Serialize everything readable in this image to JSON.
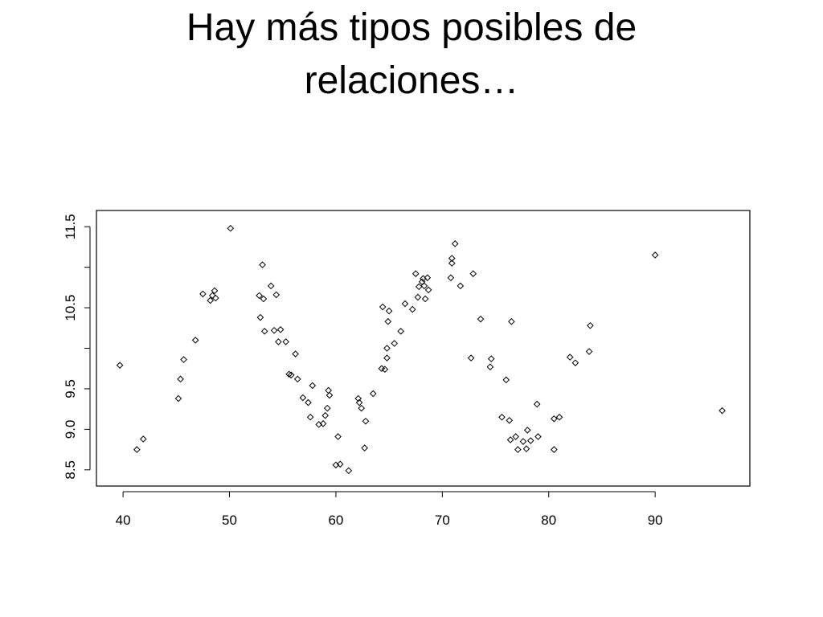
{
  "slide": {
    "title_line1": "Hay más tipos posibles de",
    "title_line2": "relaciones…"
  },
  "chart_data": {
    "type": "scatter",
    "title": "",
    "xlabel": "",
    "ylabel": "",
    "xlim": [
      37.5,
      98.9
    ],
    "ylim": [
      8.3,
      11.7
    ],
    "xticks": [
      40,
      50,
      60,
      70,
      80,
      90
    ],
    "xtick_labels": [
      "40",
      "50",
      "60",
      "70",
      "80",
      "90"
    ],
    "yticks": [
      8.5,
      9.0,
      9.5,
      10.0,
      10.5,
      11.0,
      11.5
    ],
    "ytick_labels": [
      "8.5",
      "9.0",
      "9.5",
      "",
      "10.5",
      "",
      "11.5"
    ],
    "marker": "open-diamond",
    "points": [
      [
        39.7,
        9.79
      ],
      [
        41.3,
        8.75
      ],
      [
        41.9,
        8.88
      ],
      [
        45.2,
        9.38
      ],
      [
        45.4,
        9.62
      ],
      [
        45.7,
        9.86
      ],
      [
        46.8,
        10.1
      ],
      [
        47.5,
        10.67
      ],
      [
        48.2,
        10.59
      ],
      [
        48.4,
        10.65
      ],
      [
        48.6,
        10.71
      ],
      [
        48.7,
        10.62
      ],
      [
        50.1,
        11.48
      ],
      [
        52.8,
        10.65
      ],
      [
        52.9,
        10.38
      ],
      [
        53.1,
        11.03
      ],
      [
        53.2,
        10.61
      ],
      [
        53.3,
        10.21
      ],
      [
        53.9,
        10.77
      ],
      [
        54.2,
        10.22
      ],
      [
        54.4,
        10.66
      ],
      [
        54.6,
        10.08
      ],
      [
        54.8,
        10.23
      ],
      [
        55.3,
        10.08
      ],
      [
        55.6,
        9.68
      ],
      [
        55.8,
        9.67
      ],
      [
        56.2,
        9.93
      ],
      [
        56.4,
        9.62
      ],
      [
        56.9,
        9.39
      ],
      [
        57.4,
        9.33
      ],
      [
        57.6,
        9.15
      ],
      [
        57.8,
        9.54
      ],
      [
        58.4,
        9.06
      ],
      [
        58.8,
        9.07
      ],
      [
        59.0,
        9.17
      ],
      [
        59.2,
        9.26
      ],
      [
        59.3,
        9.48
      ],
      [
        59.4,
        9.42
      ],
      [
        60.0,
        8.56
      ],
      [
        60.2,
        8.91
      ],
      [
        60.4,
        8.57
      ],
      [
        61.2,
        8.49
      ],
      [
        62.1,
        9.38
      ],
      [
        62.2,
        9.33
      ],
      [
        62.4,
        9.26
      ],
      [
        62.7,
        8.77
      ],
      [
        62.8,
        9.1
      ],
      [
        63.5,
        9.44
      ],
      [
        64.3,
        9.75
      ],
      [
        64.4,
        10.51
      ],
      [
        64.6,
        9.74
      ],
      [
        64.8,
        9.88
      ],
      [
        64.8,
        10.0
      ],
      [
        64.9,
        10.33
      ],
      [
        65.0,
        10.46
      ],
      [
        65.5,
        10.06
      ],
      [
        66.1,
        10.21
      ],
      [
        66.5,
        10.55
      ],
      [
        67.2,
        10.48
      ],
      [
        67.5,
        10.92
      ],
      [
        67.7,
        10.63
      ],
      [
        67.8,
        10.76
      ],
      [
        68.1,
        10.82
      ],
      [
        68.2,
        10.86
      ],
      [
        68.3,
        10.77
      ],
      [
        68.4,
        10.61
      ],
      [
        68.6,
        10.87
      ],
      [
        68.7,
        10.72
      ],
      [
        70.8,
        10.87
      ],
      [
        70.9,
        11.11
      ],
      [
        70.9,
        11.05
      ],
      [
        71.2,
        11.29
      ],
      [
        71.7,
        10.77
      ],
      [
        72.7,
        9.88
      ],
      [
        72.9,
        10.92
      ],
      [
        73.6,
        10.36
      ],
      [
        74.5,
        9.77
      ],
      [
        74.6,
        9.87
      ],
      [
        75.6,
        9.15
      ],
      [
        76.0,
        9.61
      ],
      [
        76.3,
        9.11
      ],
      [
        76.4,
        8.87
      ],
      [
        76.5,
        10.33
      ],
      [
        76.9,
        8.91
      ],
      [
        77.1,
        8.75
      ],
      [
        77.6,
        8.85
      ],
      [
        77.9,
        8.76
      ],
      [
        78.0,
        8.99
      ],
      [
        78.3,
        8.86
      ],
      [
        78.9,
        9.31
      ],
      [
        79.0,
        8.91
      ],
      [
        80.5,
        8.75
      ],
      [
        80.5,
        9.13
      ],
      [
        81.0,
        9.15
      ],
      [
        82.0,
        9.89
      ],
      [
        82.5,
        9.82
      ],
      [
        83.8,
        9.96
      ],
      [
        83.9,
        10.28
      ],
      [
        90.0,
        11.15
      ],
      [
        96.3,
        9.23
      ]
    ]
  }
}
